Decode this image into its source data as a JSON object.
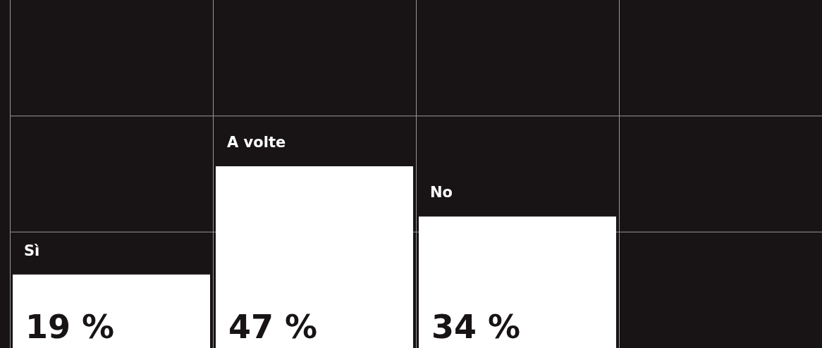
{
  "chart_data": {
    "type": "bar",
    "categories": [
      "Sì",
      "A volte",
      "No"
    ],
    "values": [
      19,
      47,
      34
    ],
    "color": "#ffffff",
    "value_labels": [
      "19 %",
      "47 %",
      "34 %"
    ],
    "ylim": [
      0,
      90
    ],
    "yticks": [
      {
        "value": 30,
        "label": null
      },
      {
        "value": 60,
        "label": null
      }
    ],
    "grid": true
  }
}
